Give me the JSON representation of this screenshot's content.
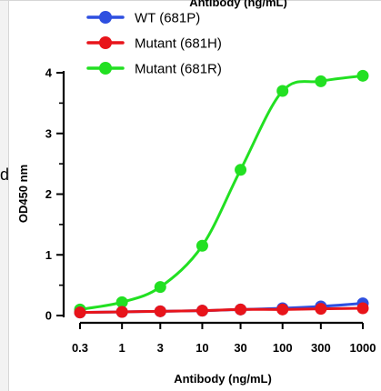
{
  "left_fragment": "d",
  "chart_data": {
    "type": "line",
    "top_title": "Antibody (ng/mL)",
    "xlabel": "Antibody (ng/mL)",
    "ylabel": "OD450 nm",
    "x_scale": "log",
    "x": [
      0.3,
      1,
      3,
      10,
      30,
      100,
      300,
      1000
    ],
    "x_tick_labels": [
      "0.3",
      "1",
      "3",
      "10",
      "30",
      "100",
      "300",
      "1000"
    ],
    "y_ticks": [
      0,
      1,
      2,
      3,
      4
    ],
    "y_tick_labels": [
      "0",
      "1",
      "2",
      "3",
      "4"
    ],
    "ylim": [
      0,
      4
    ],
    "grid": false,
    "legend_position": "top-left",
    "series": [
      {
        "name": "WT (681P)",
        "color": "#2e4fe0",
        "values": [
          0.05,
          0.06,
          0.07,
          0.08,
          0.1,
          0.12,
          0.15,
          0.2
        ]
      },
      {
        "name": "Mutant (681H)",
        "color": "#e8141a",
        "values": [
          0.05,
          0.06,
          0.07,
          0.08,
          0.1,
          0.1,
          0.11,
          0.12
        ]
      },
      {
        "name": "Mutant (681R)",
        "color": "#22e022",
        "values": [
          0.1,
          0.22,
          0.47,
          1.15,
          2.4,
          3.7,
          3.86,
          3.95
        ]
      }
    ]
  }
}
